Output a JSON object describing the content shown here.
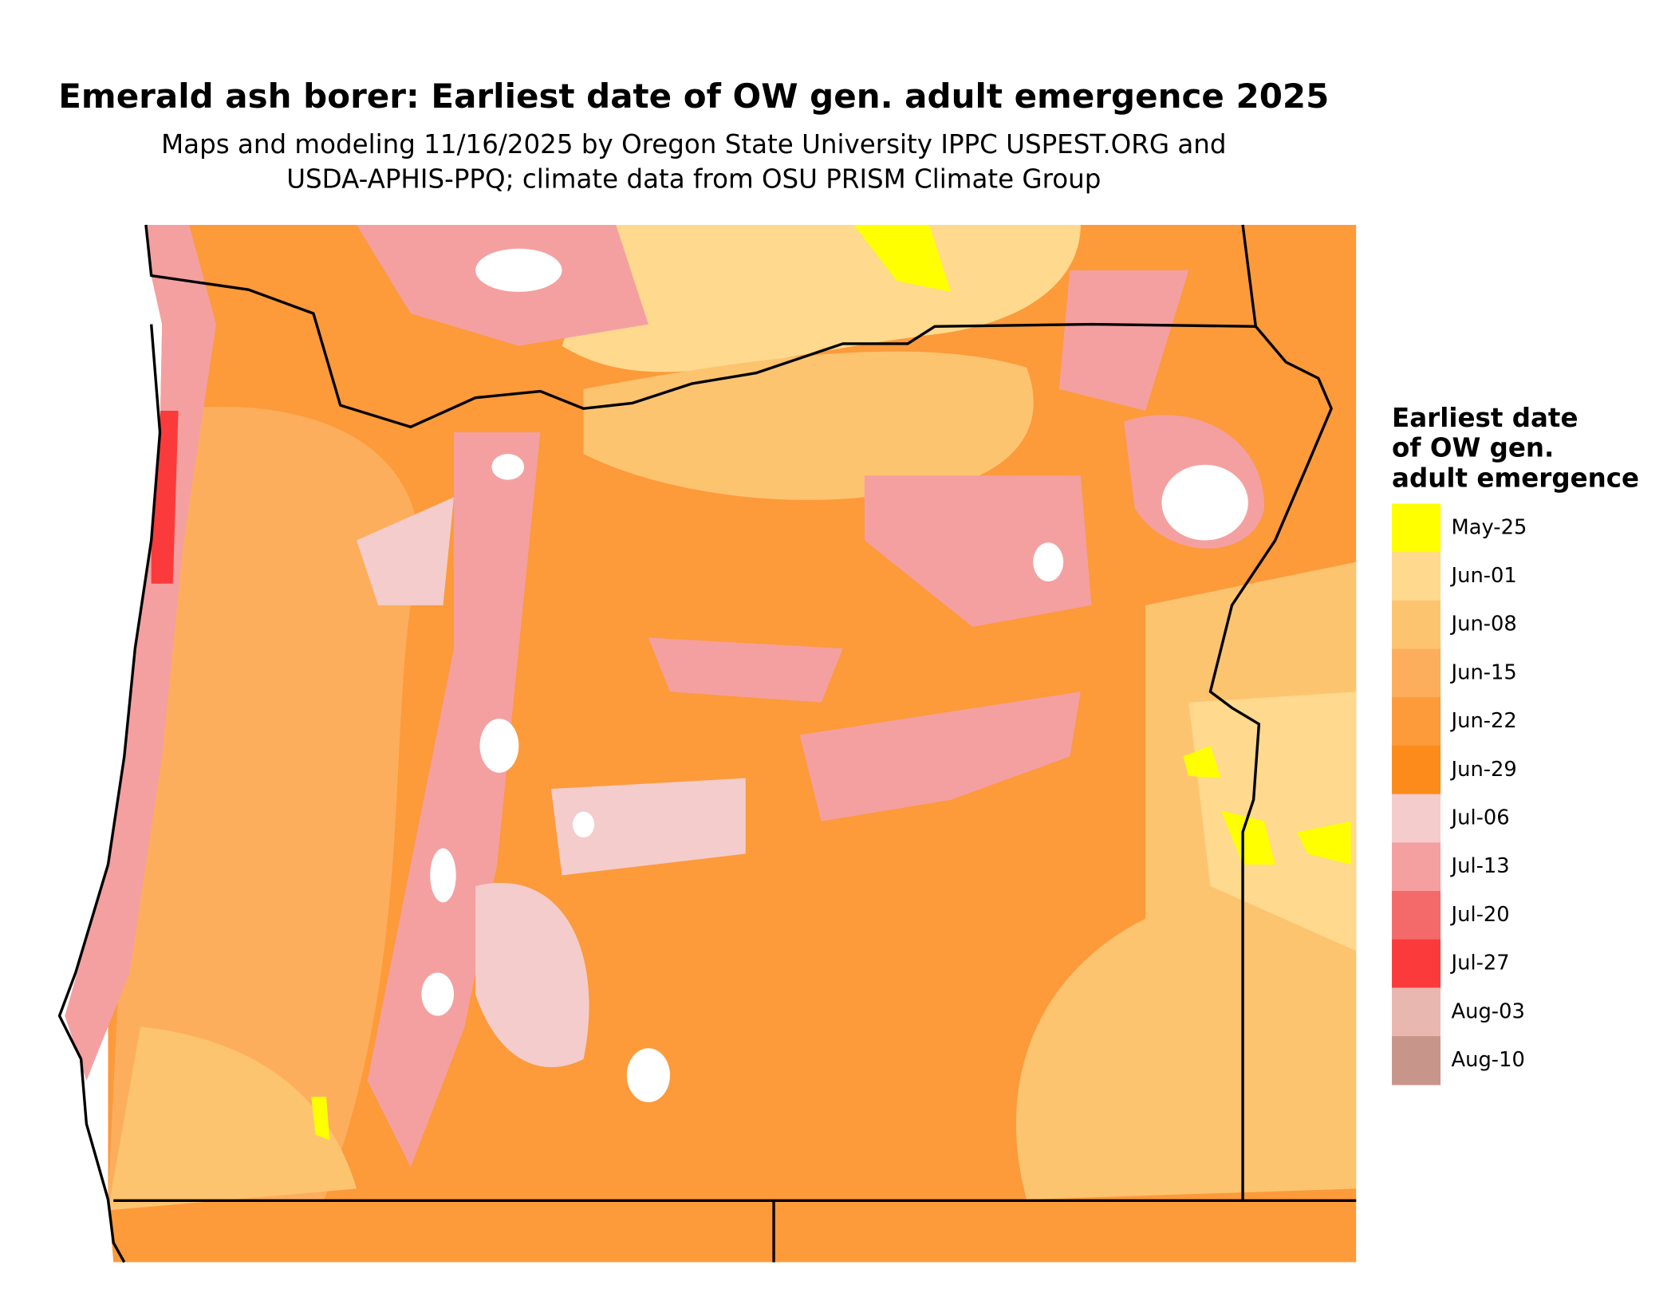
{
  "title": "Emerald ash borer: Earliest date of OW gen. adult emergence 2025",
  "subtitle": [
    "Maps and modeling 11/16/2025 by Oregon State University IPPC USPEST.ORG and",
    "USDA-APHIS-PPQ; climate data from OSU PRISM Climate Group"
  ],
  "legend": {
    "title": [
      "Earliest date",
      "of OW gen.",
      "adult emergence"
    ],
    "items": [
      {
        "label": "May-25",
        "color": "#ffff00"
      },
      {
        "label": "Jun-01",
        "color": "#fed98e"
      },
      {
        "label": "Jun-08",
        "color": "#fdc470"
      },
      {
        "label": "Jun-15",
        "color": "#fdae5c"
      },
      {
        "label": "Jun-22",
        "color": "#fd9a3a"
      },
      {
        "label": "Jun-29",
        "color": "#fd8b1c"
      },
      {
        "label": "Jul-06",
        "color": "#f4cccc"
      },
      {
        "label": "Jul-13",
        "color": "#f4a0a0"
      },
      {
        "label": "Jul-20",
        "color": "#f46a6a"
      },
      {
        "label": "Jul-27",
        "color": "#fb3b3b"
      },
      {
        "label": "Aug-03",
        "color": "#e8b8b0"
      },
      {
        "label": "Aug-10",
        "color": "#c8958a"
      }
    ]
  }
}
